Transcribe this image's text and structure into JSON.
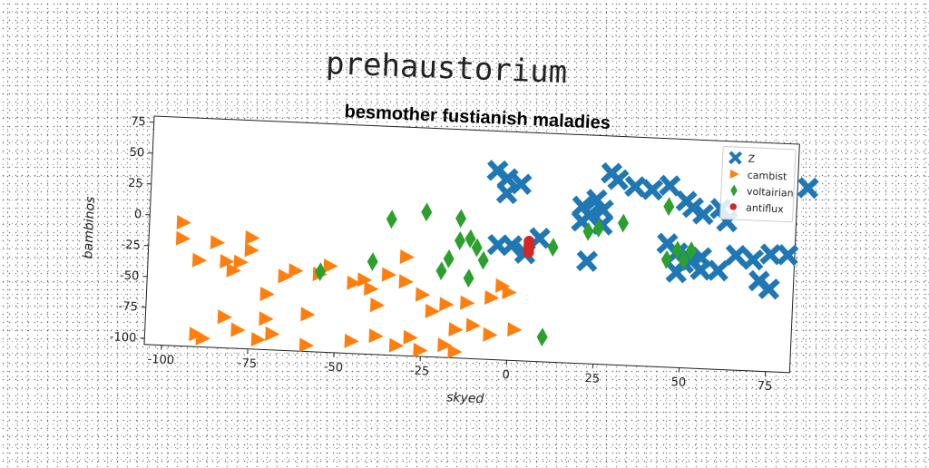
{
  "suptitle": "prehaustorium",
  "chart_data": {
    "type": "scatter",
    "title": "besmother fustianish maladies",
    "xlabel": "skyed",
    "ylabel": "bambinos",
    "xlim": [
      -105,
      82
    ],
    "ylim": [
      -105,
      80
    ],
    "xticks": [
      -100,
      -75,
      -50,
      -25,
      0,
      25,
      50,
      75
    ],
    "yticks": [
      -100,
      -75,
      -50,
      -25,
      0,
      25,
      50,
      75
    ],
    "grid": false,
    "legend_position": "top-right",
    "series": [
      {
        "name": "Z",
        "marker": "X",
        "color": "#1f77b4",
        "points": [
          [
            -5,
            48
          ],
          [
            -2,
            42
          ],
          [
            -2,
            30
          ],
          [
            2,
            38
          ],
          [
            -4,
            -12
          ],
          [
            0,
            -12
          ],
          [
            4,
            -18
          ],
          [
            8,
            -5
          ],
          [
            20,
            22
          ],
          [
            22,
            15
          ],
          [
            24,
            28
          ],
          [
            26,
            20
          ],
          [
            20,
            10
          ],
          [
            26,
            8
          ],
          [
            28,
            50
          ],
          [
            30,
            45
          ],
          [
            35,
            40
          ],
          [
            40,
            38
          ],
          [
            45,
            42
          ],
          [
            50,
            30
          ],
          [
            52,
            25
          ],
          [
            55,
            20
          ],
          [
            60,
            25
          ],
          [
            62,
            15
          ],
          [
            45,
            -5
          ],
          [
            48,
            -12
          ],
          [
            52,
            -18
          ],
          [
            55,
            -25
          ],
          [
            60,
            -25
          ],
          [
            22,
            -22
          ],
          [
            65,
            -12
          ],
          [
            70,
            -15
          ],
          [
            75,
            -10
          ],
          [
            80,
            -10
          ],
          [
            72,
            -32
          ],
          [
            75,
            -38
          ],
          [
            48,
            -28
          ],
          [
            50,
            -20
          ],
          [
            55,
            -15
          ],
          [
            85,
            45
          ]
        ]
      },
      {
        "name": "cambist",
        "marker": "triangle-right",
        "color": "#ff7f0e",
        "points": [
          [
            -95,
            -5
          ],
          [
            -95,
            -18
          ],
          [
            -90,
            -35
          ],
          [
            -85,
            -20
          ],
          [
            -82,
            -35
          ],
          [
            -80,
            -42
          ],
          [
            -78,
            -35
          ],
          [
            -75,
            -15
          ],
          [
            -75,
            -25
          ],
          [
            -70,
            -60
          ],
          [
            -68,
            -92
          ],
          [
            -90,
            -95
          ],
          [
            -88,
            -98
          ],
          [
            -82,
            -80
          ],
          [
            -78,
            -90
          ],
          [
            -70,
            -80
          ],
          [
            -65,
            -45
          ],
          [
            -62,
            -40
          ],
          [
            -58,
            -75
          ],
          [
            -55,
            -42
          ],
          [
            -52,
            -35
          ],
          [
            -45,
            -48
          ],
          [
            -42,
            -45
          ],
          [
            -40,
            -52
          ],
          [
            -38,
            -65
          ],
          [
            -35,
            -40
          ],
          [
            -30,
            -25
          ],
          [
            -30,
            -45
          ],
          [
            -28,
            -90
          ],
          [
            -25,
            -55
          ],
          [
            -22,
            -68
          ],
          [
            -18,
            -62
          ],
          [
            -15,
            -82
          ],
          [
            -12,
            -60
          ],
          [
            -10,
            -78
          ],
          [
            -5,
            -55
          ],
          [
            -2,
            -45
          ],
          [
            0,
            -50
          ],
          [
            -5,
            -85
          ],
          [
            2,
            -80
          ],
          [
            -15,
            -100
          ],
          [
            -18,
            -95
          ],
          [
            -25,
            -100
          ],
          [
            -32,
            -97
          ],
          [
            -38,
            -90
          ],
          [
            -45,
            -95
          ],
          [
            -58,
            -100
          ],
          [
            -72,
            -97
          ]
        ]
      },
      {
        "name": "voltairian",
        "marker": "diamond",
        "color": "#2ca02c",
        "points": [
          [
            -55,
            -40
          ],
          [
            -40,
            -30
          ],
          [
            -35,
            5
          ],
          [
            -25,
            12
          ],
          [
            -15,
            8
          ],
          [
            -12,
            -8
          ],
          [
            -15,
            -10
          ],
          [
            -10,
            -15
          ],
          [
            -18,
            -25
          ],
          [
            -20,
            -35
          ],
          [
            -12,
            -40
          ],
          [
            -8,
            -25
          ],
          [
            12,
            -12
          ],
          [
            22,
            2
          ],
          [
            25,
            5
          ],
          [
            32,
            10
          ],
          [
            45,
            25
          ],
          [
            45,
            -18
          ],
          [
            48,
            -10
          ],
          [
            50,
            -18
          ],
          [
            52,
            -10
          ],
          [
            10,
            -85
          ]
        ]
      },
      {
        "name": "antiflux",
        "marker": "circle",
        "color": "#d62728",
        "points": [
          [
            5,
            -8
          ],
          [
            5,
            -11
          ],
          [
            5,
            -14
          ],
          [
            5,
            -17
          ]
        ]
      }
    ]
  }
}
